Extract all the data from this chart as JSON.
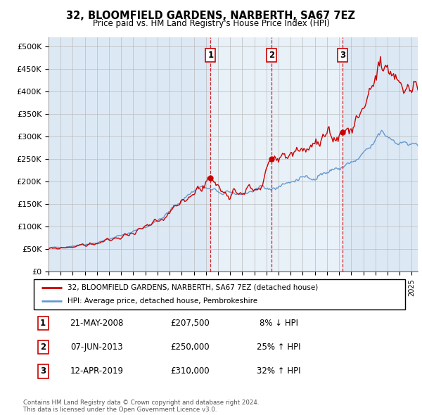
{
  "title1": "32, BLOOMFIELD GARDENS, NARBERTH, SA67 7EZ",
  "title2": "Price paid vs. HM Land Registry's House Price Index (HPI)",
  "ylabel_ticks": [
    "£0",
    "£50K",
    "£100K",
    "£150K",
    "£200K",
    "£250K",
    "£300K",
    "£350K",
    "£400K",
    "£450K",
    "£500K"
  ],
  "ytick_values": [
    0,
    50000,
    100000,
    150000,
    200000,
    250000,
    300000,
    350000,
    400000,
    450000,
    500000
  ],
  "ylim": [
    0,
    520000
  ],
  "xlim_start": 1995.0,
  "xlim_end": 2025.5,
  "sale_markers": [
    {
      "year": 2008.38,
      "price": 207500,
      "label": "1"
    },
    {
      "year": 2013.43,
      "price": 250000,
      "label": "2"
    },
    {
      "year": 2019.28,
      "price": 310000,
      "label": "3"
    }
  ],
  "legend_entries": [
    "32, BLOOMFIELD GARDENS, NARBERTH, SA67 7EZ (detached house)",
    "HPI: Average price, detached house, Pembrokeshire"
  ],
  "table_rows": [
    [
      "1",
      "21-MAY-2008",
      "£207,500",
      "8% ↓ HPI"
    ],
    [
      "2",
      "07-JUN-2013",
      "£250,000",
      "25% ↑ HPI"
    ],
    [
      "3",
      "12-APR-2019",
      "£310,000",
      "32% ↑ HPI"
    ]
  ],
  "footnote1": "Contains HM Land Registry data © Crown copyright and database right 2024.",
  "footnote2": "This data is licensed under the Open Government Licence v3.0.",
  "red_color": "#cc0000",
  "blue_color": "#6699cc",
  "bg_color": "#dce9f5",
  "highlight_color": "#c8d8ee",
  "grid_color": "#bbbbbb",
  "dashed_color": "#cc0000"
}
